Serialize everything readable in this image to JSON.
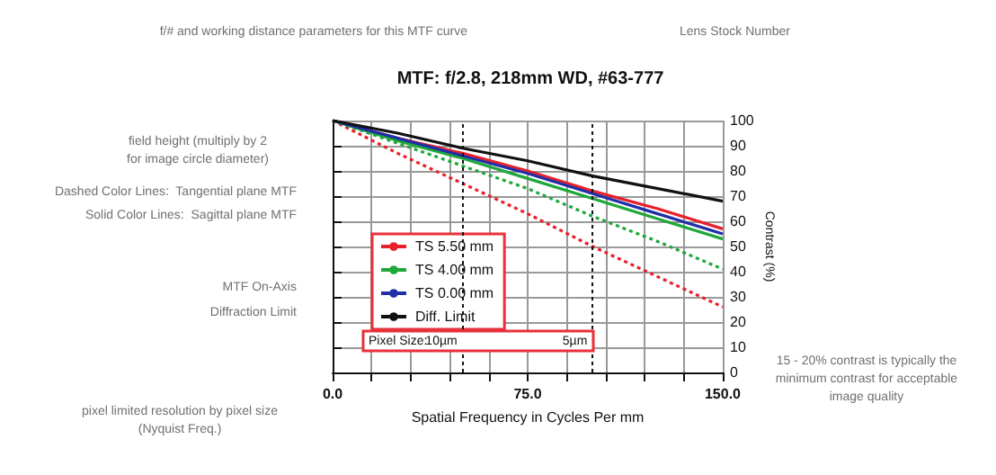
{
  "chart_data": {
    "type": "line",
    "title": "MTF: f/2.8, 218mm WD, #63-777",
    "xlabel": "Spatial Frequency in Cycles Per mm",
    "ylabel": "Contrast (%)",
    "x": [
      0,
      25,
      50,
      75,
      100,
      125,
      150
    ],
    "series": [
      {
        "name": "TS 5.50 mm",
        "color": "#e8202a",
        "line_style": "solid",
        "values": [
          100,
          93,
          87,
          80,
          72,
          65,
          57
        ]
      },
      {
        "color": "#e8202a",
        "line_style": "dotted",
        "values": [
          100,
          87,
          75,
          63,
          50,
          38,
          26
        ]
      },
      {
        "name": "TS 4.00 mm",
        "color": "#1fa83a",
        "line_style": "solid",
        "values": [
          100,
          92,
          85,
          77,
          69,
          61,
          53
        ]
      },
      {
        "color": "#1fa83a",
        "line_style": "dotted",
        "values": [
          100,
          91,
          82,
          73,
          62,
          52,
          41
        ]
      },
      {
        "name": "TS 0.00 mm",
        "color": "#1f2fa8",
        "line_style": "solid",
        "values": [
          100,
          93,
          86,
          79,
          71,
          63,
          55
        ]
      },
      {
        "name": "Diff. Limit",
        "color": "#111111",
        "line_style": "solid",
        "values": [
          100,
          95,
          89,
          84,
          78,
          73,
          68
        ]
      }
    ],
    "xlim": [
      0,
      150
    ],
    "xticks": [
      {
        "value": 0,
        "label": "0.0"
      },
      {
        "value": 15,
        "label": null
      },
      {
        "value": 30,
        "label": null
      },
      {
        "value": 45,
        "label": null
      },
      {
        "value": 60,
        "label": null
      },
      {
        "value": 75,
        "label": "75.0"
      },
      {
        "value": 90,
        "label": null
      },
      {
        "value": 105,
        "label": null
      },
      {
        "value": 120,
        "label": null
      },
      {
        "value": 135,
        "label": null
      },
      {
        "value": 150,
        "label": "150.0"
      }
    ],
    "ylim": [
      0,
      100
    ],
    "yticks": [
      0,
      10,
      20,
      30,
      40,
      50,
      60,
      70,
      80,
      90,
      100
    ],
    "grid": true,
    "legend": "bottom left",
    "marker": "none",
    "ref_lines": [
      {
        "axis": "x",
        "value": 50,
        "label": "10µm",
        "color": "#111111",
        "line_style": "dotted"
      },
      {
        "axis": "x",
        "value": 100,
        "label": "5µm",
        "color": "#111111",
        "line_style": "dotted"
      }
    ],
    "annotations": [
      "f/# and working distance parameters for this MTF curve",
      "Lens Stock Number",
      "field height (multiply by 2\nfor image circle diameter)",
      "Dashed Color Lines:  Tangential plane MTF",
      "Solid Color Lines:  Sagittal plane MTF",
      "MTF On-Axis",
      "Diffraction Limit",
      "pixel limited resolution by pixel size\n(Nyquist Freq.)",
      "15 - 20% contrast is typically the\nminimum contrast for acceptable\nimage quality",
      "Pixel Size:"
    ]
  }
}
